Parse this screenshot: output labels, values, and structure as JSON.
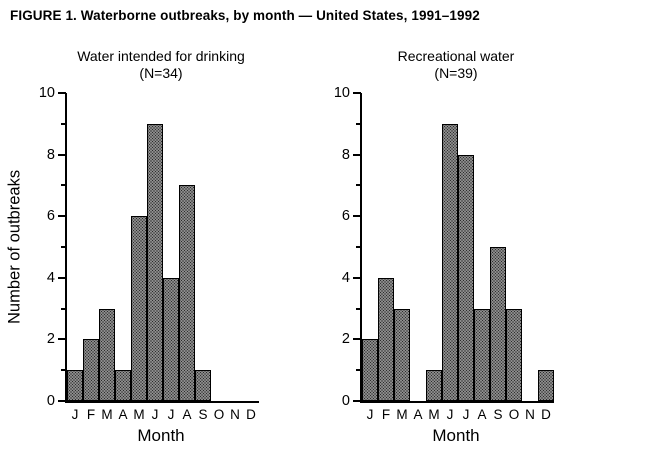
{
  "figure_title": "FIGURE 1. Waterborne outbreaks, by month — United States, 1991–1992",
  "colors": {
    "bar_fill": "#bfbfbf",
    "bar_dot": "#2b2b2b",
    "bar_edge": "#000000",
    "axis": "#000000",
    "background": "#ffffff"
  },
  "chart_data": [
    {
      "type": "bar",
      "title": "Water intended for drinking",
      "subtitle": "(N=34)",
      "categories": [
        "J",
        "F",
        "M",
        "A",
        "M",
        "J",
        "J",
        "A",
        "S",
        "O",
        "N",
        "D"
      ],
      "values": [
        1,
        2,
        3,
        1,
        6,
        9,
        4,
        7,
        1,
        0,
        0,
        0
      ],
      "xlabel": "Month",
      "ylabel": "Number of outbreaks",
      "ylim": [
        0,
        10
      ],
      "ytick_major": [
        0,
        2,
        4,
        6,
        8,
        10
      ],
      "ytick_minor": [
        1,
        3,
        5,
        7,
        9
      ],
      "grid": false,
      "legend": "none",
      "bar_style": "stippled-gray-histogram"
    },
    {
      "type": "bar",
      "title": "Recreational water",
      "subtitle": "(N=39)",
      "categories": [
        "J",
        "F",
        "M",
        "A",
        "M",
        "J",
        "J",
        "A",
        "S",
        "O",
        "N",
        "D"
      ],
      "values": [
        2,
        4,
        3,
        0,
        1,
        9,
        8,
        3,
        5,
        3,
        0,
        1
      ],
      "xlabel": "Month",
      "ylabel": "",
      "ylim": [
        0,
        10
      ],
      "ytick_major": [
        0,
        2,
        4,
        6,
        8,
        10
      ],
      "ytick_minor": [
        1,
        3,
        5,
        7,
        9
      ],
      "grid": false,
      "legend": "none",
      "bar_style": "stippled-gray-histogram"
    }
  ]
}
